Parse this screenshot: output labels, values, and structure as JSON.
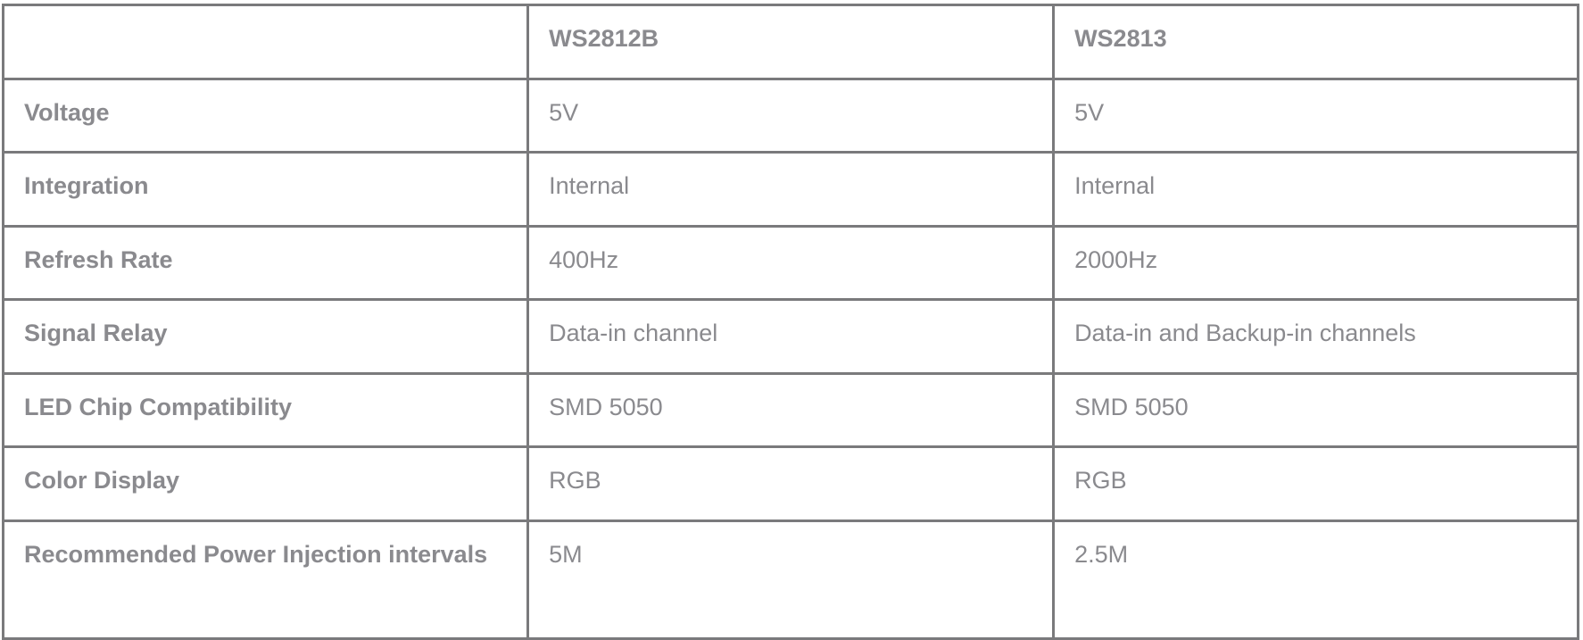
{
  "table": {
    "headers": [
      "",
      "WS2812B",
      "WS2813"
    ],
    "rows": [
      {
        "label": "Voltage",
        "values": [
          "5V",
          "5V"
        ]
      },
      {
        "label": "Integration",
        "values": [
          "Internal",
          "Internal"
        ]
      },
      {
        "label": "Refresh Rate",
        "values": [
          "400Hz",
          "2000Hz"
        ]
      },
      {
        "label": "Signal Relay",
        "values": [
          "Data-in channel",
          "Data-in and Backup-in channels"
        ]
      },
      {
        "label": "LED Chip Compatibility",
        "values": [
          "SMD 5050",
          "SMD 5050"
        ]
      },
      {
        "label": "Color Display",
        "values": [
          "RGB",
          "RGB"
        ]
      },
      {
        "label": "Recommended Power Injection intervals",
        "values": [
          "5M",
          "2.5M"
        ]
      }
    ]
  },
  "colors": {
    "border": "#7a7a7c",
    "text": "#8a8a8e"
  }
}
